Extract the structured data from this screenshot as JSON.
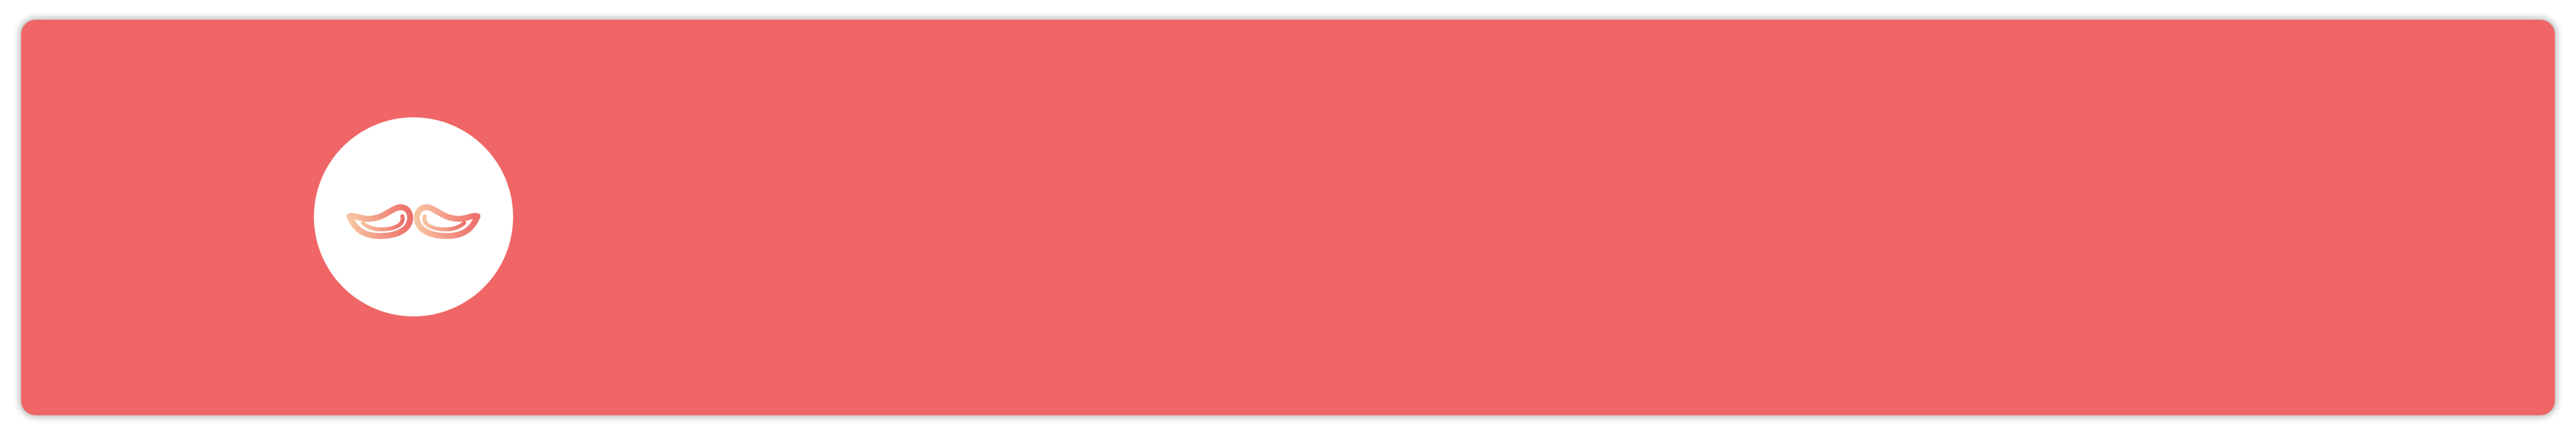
{
  "banner": {
    "background_color": "#f06666",
    "shadow_color": "rgba(0,0,0,0.28)"
  },
  "avatar": {
    "background_color": "#ffffff",
    "icon": "mustache-icon",
    "icon_gradient": [
      "#f7c4a1",
      "#ee6f6b"
    ]
  }
}
